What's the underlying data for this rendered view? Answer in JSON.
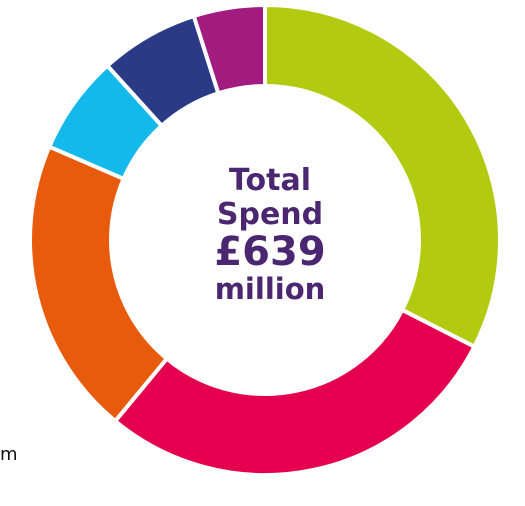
{
  "chart_data": {
    "type": "pie",
    "center_label": {
      "line1": "Total",
      "line2": "Spend",
      "amount": "£639",
      "unit": "million"
    },
    "edge_text": "m",
    "slices": [
      {
        "value": 32.5,
        "color": "#b2cb10"
      },
      {
        "value": 28.5,
        "color": "#e4004f"
      },
      {
        "value": 20.5,
        "color": "#e85b0d"
      },
      {
        "value": 6.8,
        "color": "#14b9ec"
      },
      {
        "value": 6.8,
        "color": "#2b3a86"
      },
      {
        "value": 4.9,
        "color": "#a21c7f"
      }
    ]
  }
}
